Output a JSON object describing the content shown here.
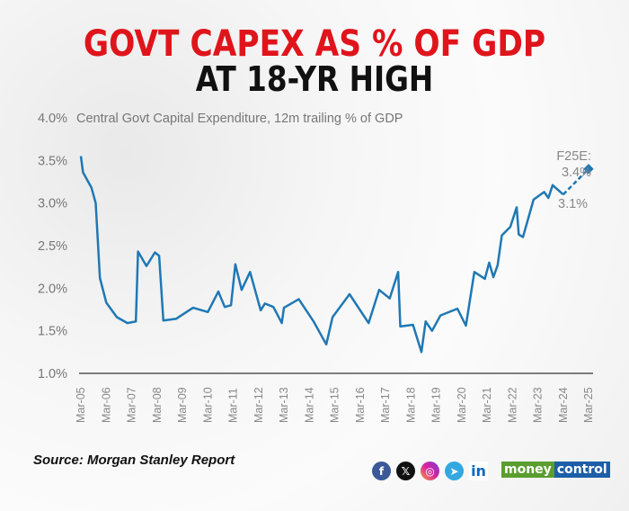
{
  "title_line1": "GOVT CAPEX AS % OF GDP",
  "title_line2": "AT 18-YR HIGH",
  "source": "Source: Morgan Stanley Report",
  "social_icons": [
    "facebook-icon",
    "x-icon",
    "instagram-icon",
    "telegram-icon",
    "linkedin-icon"
  ],
  "logo": {
    "part1": "money",
    "part2": "control",
    "color1": "#5a9e2f",
    "color2": "#1d5ea8"
  },
  "colors": {
    "title_red": "#e0141b",
    "line": "#1f78b4"
  },
  "chart_data": {
    "type": "line",
    "title": "Central Govt Capital Expenditure, 12m trailing % of GDP",
    "xlabel": "",
    "ylabel": "",
    "ylim": [
      1.0,
      4.0
    ],
    "yticks": [
      1.0,
      1.5,
      2.0,
      2.5,
      3.0,
      3.5,
      4.0
    ],
    "ytick_labels": [
      "1.0%",
      "1.5%",
      "2.0%",
      "2.5%",
      "3.0%",
      "3.5%",
      "4.0%"
    ],
    "xtick_labels": [
      "Mar-05",
      "Mar-06",
      "Mar-07",
      "Mar-08",
      "Mar-09",
      "Mar-10",
      "Mar-11",
      "Mar-12",
      "Mar-13",
      "Mar-14",
      "Mar-15",
      "Mar-16",
      "Mar-17",
      "Mar-18",
      "Mar-19",
      "Mar-20",
      "Mar-21",
      "Mar-22",
      "Mar-23",
      "Mar-24",
      "Mar-25"
    ],
    "grid": false,
    "series": [
      {
        "x": [
          "2005-03",
          "2005-04",
          "2005-08",
          "2005-10",
          "2005-12",
          "2006-03",
          "2006-08",
          "2007-01",
          "2007-05",
          "2007-06",
          "2007-10",
          "2008-02",
          "2008-04",
          "2008-06",
          "2008-12",
          "2009-08",
          "2010-03",
          "2010-08",
          "2010-11",
          "2011-02",
          "2011-04",
          "2011-07",
          "2011-11",
          "2012-04",
          "2012-06",
          "2012-10",
          "2013-02",
          "2013-03",
          "2013-10",
          "2014-05",
          "2014-11",
          "2015-02",
          "2015-10",
          "2016-07",
          "2016-12",
          "2017-05",
          "2017-09",
          "2017-10",
          "2018-04",
          "2018-08",
          "2018-10",
          "2019-01",
          "2019-05",
          "2020-01",
          "2020-05",
          "2020-09",
          "2021-02",
          "2021-04",
          "2021-06",
          "2021-08",
          "2021-10",
          "2022-02",
          "2022-05",
          "2022-06",
          "2022-08",
          "2023-01",
          "2023-06",
          "2023-08",
          "2023-10",
          "2024-03"
        ],
        "values": [
          3.55,
          3.36,
          3.18,
          3.0,
          2.12,
          1.83,
          1.66,
          1.59,
          1.61,
          2.43,
          2.26,
          2.42,
          2.38,
          1.62,
          1.64,
          1.77,
          1.72,
          1.96,
          1.78,
          1.8,
          2.28,
          1.98,
          2.19,
          1.74,
          1.82,
          1.78,
          1.59,
          1.77,
          1.87,
          1.61,
          1.34,
          1.66,
          1.93,
          1.59,
          1.98,
          1.88,
          2.19,
          1.55,
          1.57,
          1.25,
          1.61,
          1.5,
          1.68,
          1.76,
          1.56,
          2.19,
          2.11,
          2.3,
          2.13,
          2.27,
          2.62,
          2.72,
          2.95,
          2.63,
          2.6,
          3.04,
          3.13,
          3.06,
          3.21,
          3.1
        ]
      }
    ],
    "forecast": {
      "x": "2025-03",
      "value": 3.4
    },
    "annotations": {
      "forecast_label": "F25E:",
      "forecast_value": "3.4%",
      "last_actual": "3.1%"
    }
  }
}
